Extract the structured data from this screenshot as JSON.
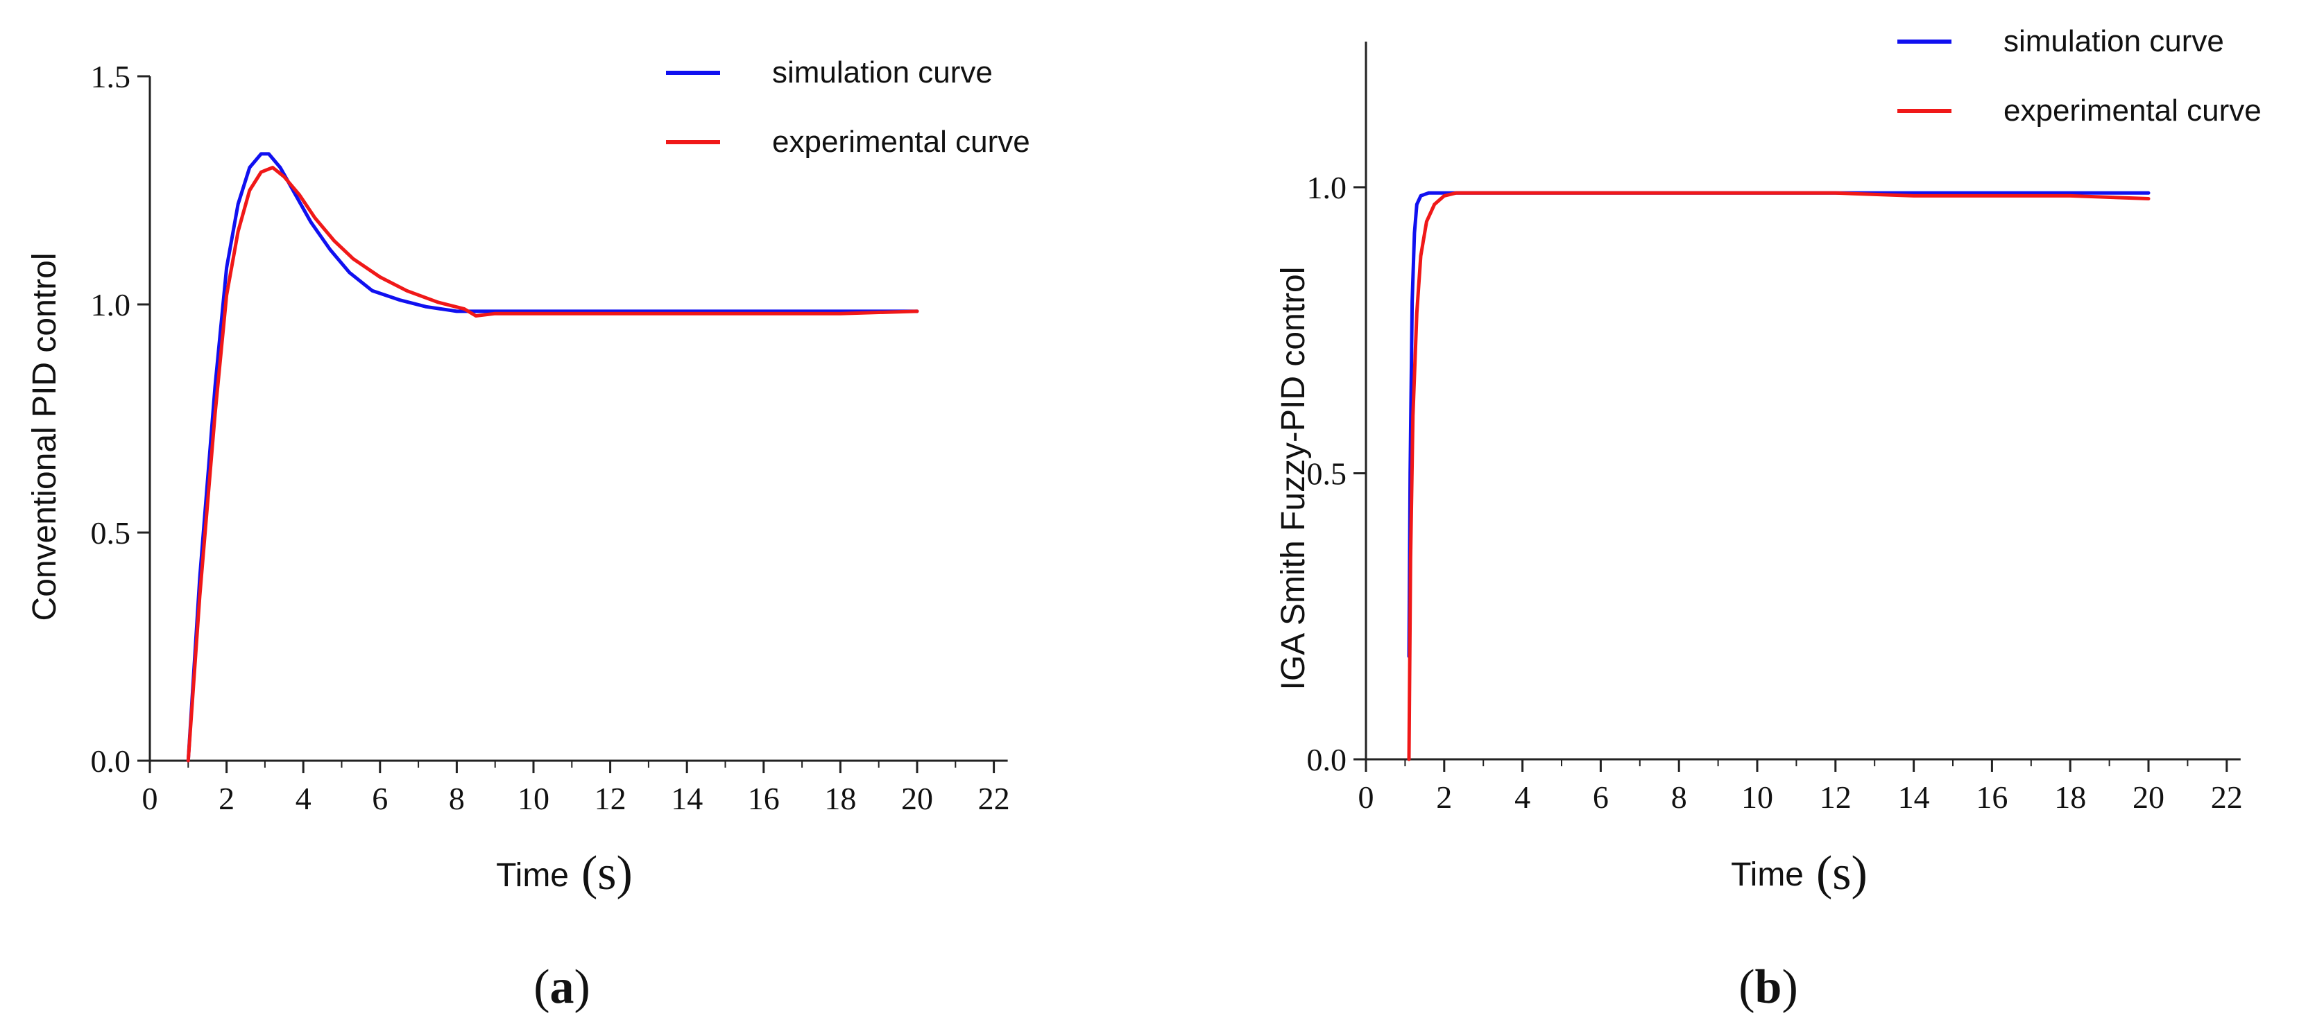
{
  "figure": {
    "caption_a": "(a)",
    "caption_a_letter": "a",
    "caption_b": "(b)",
    "caption_b_letter": "b"
  },
  "chart_data": [
    {
      "type": "line",
      "panel": "(a)",
      "title": "",
      "xlabel": "Time",
      "xlabel_unit": "(s)",
      "ylabel": "Conventional PID control",
      "xlim": [
        0,
        22
      ],
      "ylim": [
        0,
        1.5
      ],
      "xticks": [
        0,
        2,
        4,
        6,
        8,
        10,
        12,
        14,
        16,
        18,
        20,
        22
      ],
      "yticks": [
        0.0,
        0.5,
        1.0,
        1.5
      ],
      "ytick_labels": [
        "0.0",
        "0.5",
        "1.0",
        "1.5"
      ],
      "legend_position": "top-right",
      "series": [
        {
          "name": "simulation curve",
          "color": "#1010f0",
          "x": [
            1.0,
            1.3,
            1.7,
            2.0,
            2.3,
            2.6,
            2.9,
            3.1,
            3.4,
            3.8,
            4.2,
            4.7,
            5.2,
            5.8,
            6.5,
            7.2,
            8.0,
            9.0,
            10,
            12,
            14,
            16,
            18,
            20
          ],
          "y": [
            0.0,
            0.4,
            0.82,
            1.08,
            1.22,
            1.3,
            1.33,
            1.33,
            1.3,
            1.24,
            1.18,
            1.12,
            1.07,
            1.03,
            1.01,
            0.995,
            0.985,
            0.985,
            0.985,
            0.985,
            0.985,
            0.985,
            0.985,
            0.985
          ]
        },
        {
          "name": "experimental curve",
          "color": "#f01818",
          "x": [
            1.0,
            1.3,
            1.7,
            2.0,
            2.3,
            2.6,
            2.9,
            3.2,
            3.5,
            3.9,
            4.3,
            4.8,
            5.3,
            6.0,
            6.7,
            7.5,
            8.2,
            8.5,
            9.0,
            10,
            12,
            14,
            16,
            18,
            20
          ],
          "y": [
            0.0,
            0.36,
            0.76,
            1.02,
            1.16,
            1.25,
            1.29,
            1.3,
            1.28,
            1.24,
            1.19,
            1.14,
            1.1,
            1.06,
            1.03,
            1.005,
            0.99,
            0.975,
            0.98,
            0.98,
            0.98,
            0.98,
            0.98,
            0.98,
            0.985
          ]
        }
      ]
    },
    {
      "type": "line",
      "panel": "(b)",
      "title": "",
      "xlabel": "Time",
      "xlabel_unit": "(s)",
      "ylabel": "IGA Smith Fuzzy-PID control",
      "xlim": [
        0,
        22
      ],
      "ylim": [
        0,
        1.25
      ],
      "xticks": [
        0,
        2,
        4,
        6,
        8,
        10,
        12,
        14,
        16,
        18,
        20,
        22
      ],
      "yticks": [
        0.0,
        0.5,
        1.0
      ],
      "ytick_labels": [
        "0.0",
        "0.5",
        "1.0"
      ],
      "legend_position": "top-right",
      "series": [
        {
          "name": "simulation curve",
          "color": "#1010f0",
          "x": [
            1.1,
            1.13,
            1.18,
            1.24,
            1.3,
            1.4,
            1.6,
            2.0,
            4,
            6,
            8,
            10,
            12,
            14,
            16,
            18,
            20
          ],
          "y": [
            0.18,
            0.5,
            0.8,
            0.92,
            0.97,
            0.985,
            0.99,
            0.99,
            0.99,
            0.99,
            0.99,
            0.99,
            0.99,
            0.99,
            0.99,
            0.99,
            0.99
          ]
        },
        {
          "name": "experimental curve",
          "color": "#f01818",
          "x": [
            1.1,
            1.14,
            1.2,
            1.3,
            1.4,
            1.55,
            1.75,
            2.0,
            2.3,
            4,
            6,
            8,
            10,
            12,
            14,
            16,
            18,
            20
          ],
          "y": [
            0.0,
            0.35,
            0.6,
            0.78,
            0.88,
            0.94,
            0.97,
            0.985,
            0.99,
            0.99,
            0.99,
            0.99,
            0.99,
            0.99,
            0.985,
            0.985,
            0.985,
            0.98
          ]
        }
      ]
    }
  ]
}
